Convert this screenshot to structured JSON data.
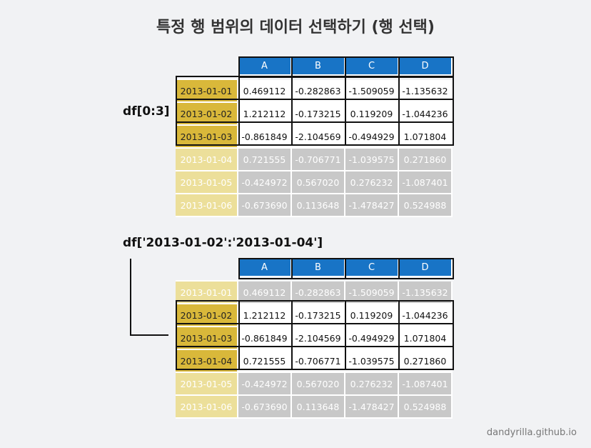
{
  "title": "특정 행 범위의 데이터 선택하기 (행 선택)",
  "footer": "dandyrilla.github.io",
  "columns": [
    "A",
    "B",
    "C",
    "D"
  ],
  "rows": [
    {
      "index": "2013-01-01",
      "values": [
        "0.469112",
        "-0.282863",
        "-1.509059",
        "-1.135632"
      ]
    },
    {
      "index": "2013-01-02",
      "values": [
        "1.212112",
        "-0.173215",
        "0.119209",
        "-1.044236"
      ]
    },
    {
      "index": "2013-01-03",
      "values": [
        "-0.861849",
        "-2.104569",
        "-0.494929",
        "1.071804"
      ]
    },
    {
      "index": "2013-01-04",
      "values": [
        "0.721555",
        "-0.706771",
        "-1.039575",
        "0.271860"
      ]
    },
    {
      "index": "2013-01-05",
      "values": [
        "-0.424972",
        "0.567020",
        "0.276232",
        "-1.087401"
      ]
    },
    {
      "index": "2013-01-06",
      "values": [
        "-0.673690",
        "0.113648",
        "-1.478427",
        "0.524988"
      ]
    }
  ],
  "examples": [
    {
      "code": "df[0:3]",
      "selected_rows": [
        0,
        1,
        2
      ]
    },
    {
      "code": "df['2013-01-02':'2013-01-04']",
      "selected_rows": [
        1,
        2,
        3
      ]
    }
  ],
  "colors": {
    "header": "#1874c6",
    "index_active": "#d9b83a",
    "index_dim": "#ecdf9a",
    "value_dim": "#c8c8c8"
  }
}
